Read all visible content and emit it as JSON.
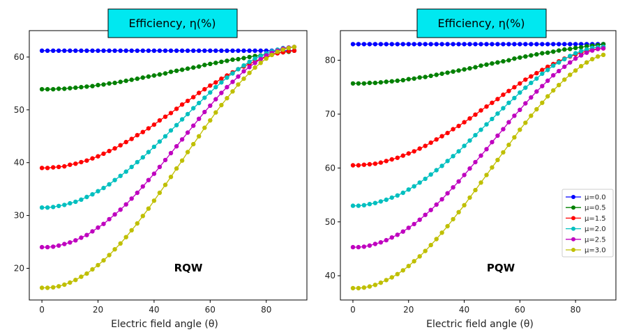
{
  "chart_data": [
    {
      "type": "line",
      "title": "Efficiency, η(%)",
      "annotation": "RQW",
      "xlabel": "Electric field angle (θ)",
      "ylabel": "",
      "xlim": [
        -4.5,
        94.5
      ],
      "ylim": [
        14,
        65
      ],
      "xticks": [
        0,
        20,
        40,
        60,
        80
      ],
      "yticks": [
        20,
        30,
        40,
        50,
        60
      ],
      "grid": false,
      "legend": "none",
      "x": [
        0,
        2,
        4,
        6,
        8,
        10,
        12,
        14,
        16,
        18,
        20,
        22,
        24,
        26,
        28,
        30,
        32,
        34,
        36,
        38,
        40,
        42,
        44,
        46,
        48,
        50,
        52,
        54,
        56,
        58,
        60,
        62,
        64,
        66,
        68,
        70,
        72,
        74,
        76,
        78,
        80,
        82,
        84,
        86,
        88,
        90
      ],
      "series": [
        {
          "label": "μ=0.0",
          "color": "#0000ff",
          "values": [
            61.2,
            61.2,
            61.2,
            61.2,
            61.2,
            61.2,
            61.2,
            61.2,
            61.2,
            61.2,
            61.2,
            61.2,
            61.2,
            61.2,
            61.2,
            61.2,
            61.2,
            61.2,
            61.2,
            61.2,
            61.2,
            61.2,
            61.2,
            61.2,
            61.2,
            61.2,
            61.2,
            61.2,
            61.2,
            61.2,
            61.2,
            61.2,
            61.2,
            61.2,
            61.2,
            61.2,
            61.2,
            61.2,
            61.2,
            61.2,
            61.2,
            61.2,
            61.2,
            61.2,
            61.2,
            61.2
          ]
        },
        {
          "label": "μ=0.5",
          "color": "#008000",
          "values": [
            53.9,
            53.9,
            53.9,
            54.0,
            54.0,
            54.1,
            54.2,
            54.3,
            54.4,
            54.5,
            54.7,
            54.8,
            55.0,
            55.1,
            55.3,
            55.5,
            55.7,
            55.9,
            56.1,
            56.3,
            56.5,
            56.7,
            56.9,
            57.2,
            57.4,
            57.6,
            57.8,
            58.0,
            58.2,
            58.5,
            58.7,
            58.9,
            59.1,
            59.3,
            59.5,
            59.6,
            59.8,
            60.0,
            60.2,
            60.3,
            60.5,
            60.6,
            60.8,
            60.9,
            61.0,
            61.2
          ]
        },
        {
          "label": "μ=1.5",
          "color": "#ff0000",
          "values": [
            39.0,
            39.0,
            39.1,
            39.2,
            39.3,
            39.6,
            39.8,
            40.1,
            40.4,
            40.8,
            41.2,
            41.7,
            42.2,
            42.7,
            43.3,
            43.9,
            44.5,
            45.2,
            45.8,
            46.5,
            47.2,
            48.0,
            48.7,
            49.4,
            50.2,
            51.0,
            51.7,
            52.4,
            53.2,
            53.9,
            54.6,
            55.2,
            55.9,
            56.5,
            57.1,
            57.7,
            58.2,
            58.7,
            59.2,
            59.6,
            60.0,
            60.4,
            60.7,
            60.9,
            61.1,
            61.2
          ]
        },
        {
          "label": "μ=2.0",
          "color": "#00bfbf",
          "values": [
            31.5,
            31.5,
            31.6,
            31.8,
            32.0,
            32.3,
            32.6,
            33.0,
            33.5,
            34.0,
            34.6,
            35.2,
            35.9,
            36.7,
            37.5,
            38.3,
            39.2,
            40.1,
            41.0,
            42.0,
            43.0,
            44.0,
            45.0,
            46.1,
            47.1,
            48.2,
            49.2,
            50.3,
            51.3,
            52.3,
            53.3,
            54.3,
            55.2,
            56.1,
            56.9,
            57.7,
            58.4,
            59.1,
            59.7,
            60.2,
            60.7,
            61.1,
            61.4,
            61.7,
            61.8,
            61.9
          ]
        },
        {
          "label": "μ=2.5",
          "color": "#bf00bf",
          "values": [
            24.0,
            24.0,
            24.1,
            24.3,
            24.6,
            24.9,
            25.3,
            25.8,
            26.3,
            27.0,
            27.7,
            28.4,
            29.3,
            30.2,
            31.1,
            32.1,
            33.2,
            34.3,
            35.5,
            36.7,
            37.9,
            39.2,
            40.5,
            41.8,
            43.1,
            44.4,
            45.7,
            47.0,
            48.3,
            49.6,
            50.8,
            52.0,
            53.2,
            54.3,
            55.3,
            56.3,
            57.3,
            58.1,
            58.9,
            59.6,
            60.3,
            60.8,
            61.2,
            61.6,
            61.8,
            61.9
          ]
        },
        {
          "label": "μ=3.0",
          "color": "#bfbf00",
          "values": [
            16.3,
            16.3,
            16.4,
            16.6,
            16.9,
            17.3,
            17.8,
            18.4,
            19.0,
            19.8,
            20.6,
            21.5,
            22.5,
            23.6,
            24.7,
            25.9,
            27.2,
            28.5,
            29.9,
            31.3,
            32.8,
            34.3,
            35.8,
            37.3,
            38.9,
            40.4,
            42.0,
            43.5,
            45.0,
            46.6,
            48.0,
            49.5,
            50.9,
            52.2,
            53.5,
            54.8,
            55.9,
            57.0,
            58.0,
            58.9,
            59.7,
            60.4,
            61.0,
            61.4,
            61.7,
            61.9
          ]
        }
      ]
    },
    {
      "type": "line",
      "title": "Efficiency, η(%)",
      "annotation": "PQW",
      "xlabel": "Electric field angle (θ)",
      "ylabel": "",
      "xlim": [
        -4.5,
        94.5
      ],
      "ylim": [
        35.5,
        85.5
      ],
      "xticks": [
        0,
        20,
        40,
        60,
        80
      ],
      "yticks": [
        40,
        50,
        60,
        70,
        80
      ],
      "grid": false,
      "legend": "center-right",
      "x": [
        0,
        2,
        4,
        6,
        8,
        10,
        12,
        14,
        16,
        18,
        20,
        22,
        24,
        26,
        28,
        30,
        32,
        34,
        36,
        38,
        40,
        42,
        44,
        46,
        48,
        50,
        52,
        54,
        56,
        58,
        60,
        62,
        64,
        66,
        68,
        70,
        72,
        74,
        76,
        78,
        80,
        82,
        84,
        86,
        88,
        90
      ],
      "series": [
        {
          "label": "μ=0.0",
          "color": "#0000ff",
          "values": [
            83.0,
            83.0,
            83.0,
            83.0,
            83.0,
            83.0,
            83.0,
            83.0,
            83.0,
            83.0,
            83.0,
            83.0,
            83.0,
            83.0,
            83.0,
            83.0,
            83.0,
            83.0,
            83.0,
            83.0,
            83.0,
            83.0,
            83.0,
            83.0,
            83.0,
            83.0,
            83.0,
            83.0,
            83.0,
            83.0,
            83.0,
            83.0,
            83.0,
            83.0,
            83.0,
            83.0,
            83.0,
            83.0,
            83.0,
            83.0,
            83.0,
            83.0,
            83.0,
            83.0,
            83.0,
            83.0
          ]
        },
        {
          "label": "μ=0.5",
          "color": "#008000",
          "values": [
            75.7,
            75.7,
            75.7,
            75.8,
            75.8,
            75.9,
            76.0,
            76.1,
            76.2,
            76.3,
            76.5,
            76.6,
            76.8,
            76.9,
            77.1,
            77.3,
            77.5,
            77.7,
            77.9,
            78.1,
            78.3,
            78.5,
            78.7,
            79.0,
            79.2,
            79.4,
            79.6,
            79.8,
            80.0,
            80.3,
            80.5,
            80.7,
            80.9,
            81.1,
            81.3,
            81.4,
            81.6,
            81.8,
            82.0,
            82.1,
            82.3,
            82.4,
            82.6,
            82.7,
            82.8,
            83.0
          ]
        },
        {
          "label": "μ=1.5",
          "color": "#ff0000",
          "values": [
            60.5,
            60.5,
            60.6,
            60.7,
            60.8,
            61.0,
            61.3,
            61.6,
            61.9,
            62.3,
            62.7,
            63.1,
            63.6,
            64.1,
            64.7,
            65.3,
            65.9,
            66.5,
            67.2,
            67.8,
            68.5,
            69.2,
            69.9,
            70.7,
            71.4,
            72.1,
            72.8,
            73.6,
            74.3,
            75.0,
            75.7,
            76.4,
            77.0,
            77.6,
            78.2,
            78.8,
            79.3,
            79.8,
            80.3,
            80.7,
            81.1,
            81.4,
            81.7,
            82.0,
            82.1,
            82.2
          ]
        },
        {
          "label": "μ=2.0",
          "color": "#00bfbf",
          "values": [
            53.0,
            53.0,
            53.1,
            53.3,
            53.5,
            53.8,
            54.1,
            54.5,
            54.9,
            55.4,
            56.0,
            56.6,
            57.3,
            58.0,
            58.8,
            59.6,
            60.4,
            61.3,
            62.2,
            63.1,
            64.1,
            65.1,
            66.1,
            67.1,
            68.1,
            69.1,
            70.1,
            71.1,
            72.1,
            73.0,
            74.0,
            74.9,
            75.8,
            76.6,
            77.5,
            78.2,
            79.0,
            79.6,
            80.2,
            80.8,
            81.3,
            81.7,
            82.0,
            82.3,
            82.4,
            82.5
          ]
        },
        {
          "label": "μ=2.5",
          "color": "#bf00bf",
          "values": [
            45.3,
            45.3,
            45.4,
            45.6,
            45.9,
            46.2,
            46.6,
            47.1,
            47.6,
            48.2,
            48.9,
            49.6,
            50.4,
            51.3,
            52.2,
            53.2,
            54.2,
            55.3,
            56.4,
            57.5,
            58.7,
            59.9,
            61.1,
            62.3,
            63.5,
            64.8,
            66.0,
            67.2,
            68.5,
            69.7,
            70.8,
            72.0,
            73.1,
            74.2,
            75.2,
            76.2,
            77.2,
            78.0,
            78.8,
            79.6,
            80.3,
            80.9,
            81.4,
            81.8,
            82.1,
            82.2
          ]
        },
        {
          "label": "μ=3.0",
          "color": "#bfbf00",
          "values": [
            37.7,
            37.7,
            37.8,
            38.0,
            38.3,
            38.7,
            39.2,
            39.7,
            40.3,
            41.0,
            41.8,
            42.7,
            43.6,
            44.6,
            45.7,
            46.8,
            48.0,
            49.2,
            50.5,
            51.8,
            53.1,
            54.5,
            55.9,
            57.3,
            58.7,
            60.1,
            61.5,
            62.9,
            64.3,
            65.7,
            67.1,
            68.4,
            69.7,
            70.9,
            72.1,
            73.3,
            74.4,
            75.4,
            76.4,
            77.3,
            78.1,
            78.9,
            79.6,
            80.2,
            80.7,
            81.0
          ]
        }
      ]
    }
  ]
}
